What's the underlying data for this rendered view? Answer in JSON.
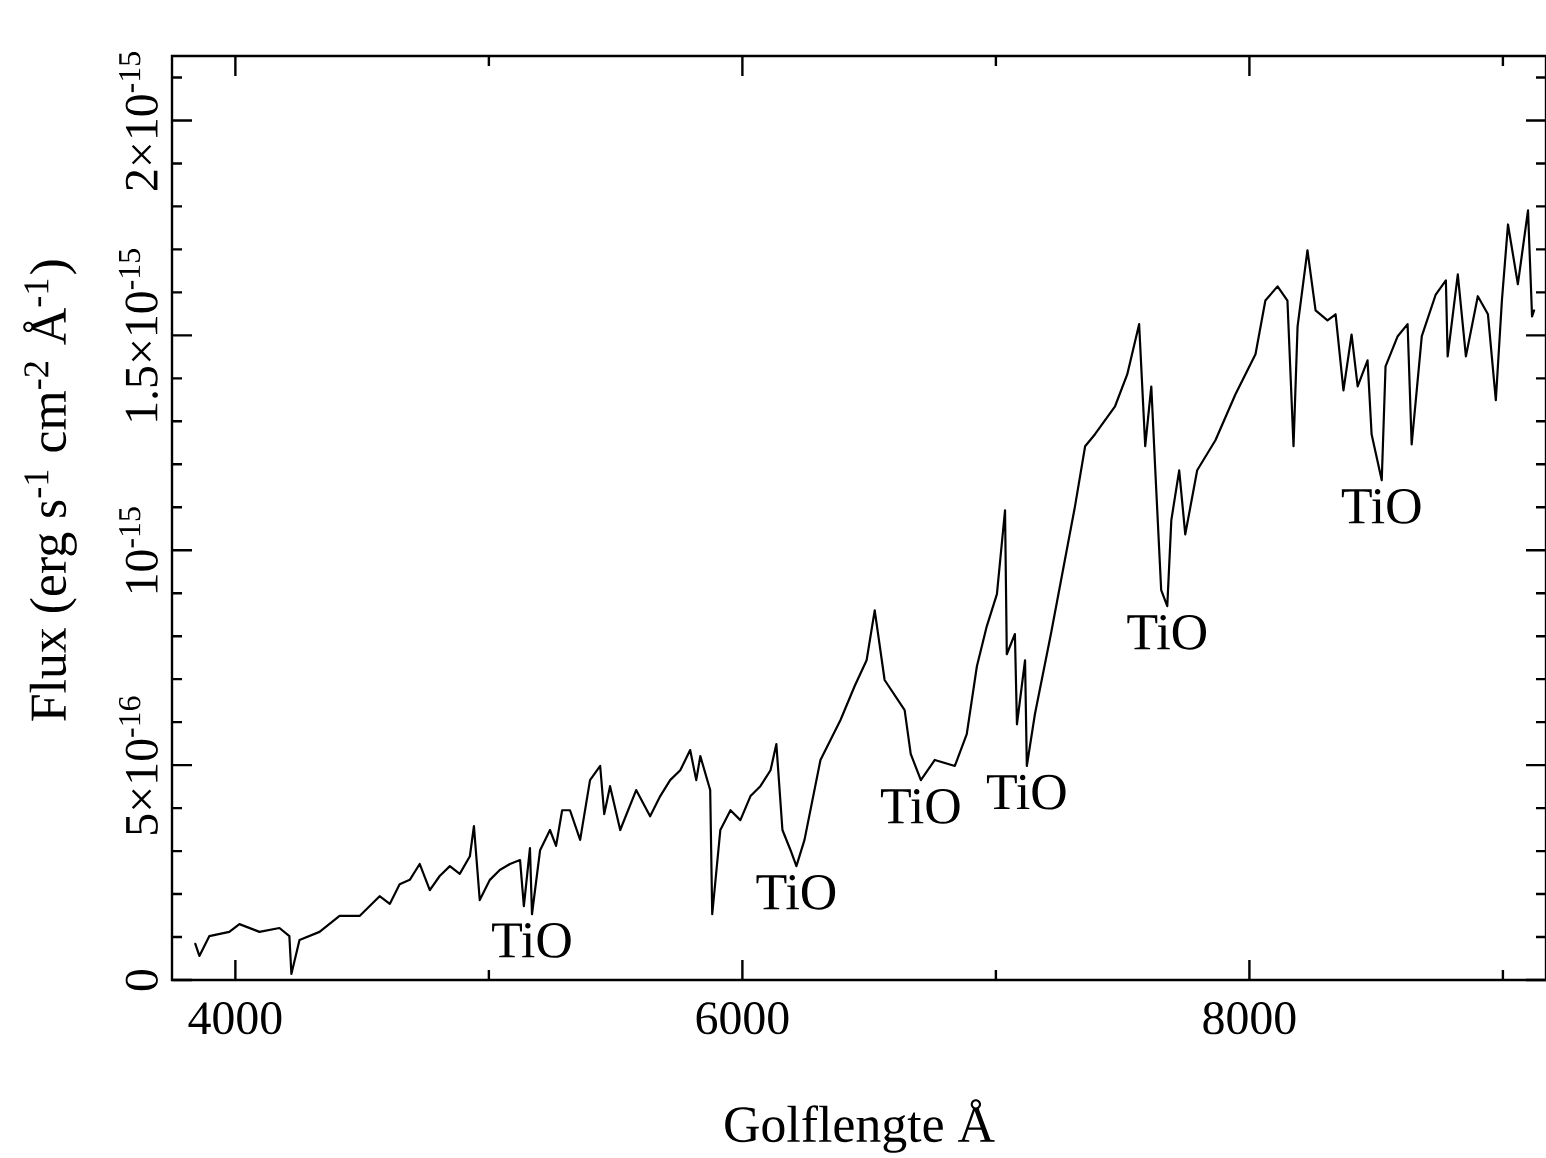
{
  "chart_data": {
    "type": "line",
    "xlabel": "Golflengte Å",
    "ylabel": "Flux (erg s$^{-1}$ cm$^{-2}$ Å$^{-1}$)",
    "xlim": [
      3750,
      9170
    ],
    "ylim": [
      0,
      2.15e-15
    ],
    "xticks": [
      4000,
      {
        "value": 5000,
        "label": null
      },
      6000,
      {
        "value": 7000,
        "label": null
      },
      8000,
      {
        "value": 9000,
        "label": null
      }
    ],
    "yticks": [
      0,
      {
        "value": 1e-16,
        "label": null
      },
      {
        "value": 2e-16,
        "label": null
      },
      {
        "value": 3e-16,
        "label": null
      },
      {
        "value": 4e-16,
        "label": null
      },
      {
        "value": 5e-16,
        "label": "5×10$^{-16}$"
      },
      {
        "value": 6e-16,
        "label": null
      },
      {
        "value": 7e-16,
        "label": null
      },
      {
        "value": 8e-16,
        "label": null
      },
      {
        "value": 9e-16,
        "label": null
      },
      {
        "value": 1e-15,
        "label": "10$^{-15}$"
      },
      {
        "value": 1.1e-15,
        "label": null
      },
      {
        "value": 1.2e-15,
        "label": null
      },
      {
        "value": 1.3e-15,
        "label": null
      },
      {
        "value": 1.4e-15,
        "label": null
      },
      {
        "value": 1.5e-15,
        "label": "1.5×10$^{-15}$"
      },
      {
        "value": 1.6e-15,
        "label": null
      },
      {
        "value": 1.7e-15,
        "label": null
      },
      {
        "value": 1.8e-15,
        "label": null
      },
      {
        "value": 1.9e-15,
        "label": null
      },
      {
        "value": 2e-15,
        "label": "2×10$^{-15}$"
      },
      {
        "value": 2.1e-15,
        "label": null
      }
    ],
    "color": "#000000",
    "x": [
      3842,
      3858,
      3897,
      3976,
      4016,
      4095,
      4174,
      4213,
      4221,
      4253,
      4332,
      4411,
      4490,
      4569,
      4609,
      4648,
      4688,
      4727,
      4767,
      4806,
      4846,
      4885,
      4925,
      4941,
      4964,
      5004,
      5043,
      5083,
      5123,
      5138,
      5162,
      5170,
      5202,
      5241,
      5265,
      5289,
      5320,
      5360,
      5399,
      5439,
      5455,
      5478,
      5518,
      5581,
      5636,
      5676,
      5715,
      5755,
      5794,
      5818,
      5834,
      5873,
      5881,
      5913,
      5953,
      5992,
      6032,
      6071,
      6111,
      6134,
      6158,
      6190,
      6213,
      6245,
      6308,
      6387,
      6443,
      6490,
      6522,
      6561,
      6640,
      6664,
      6704,
      6759,
      6838,
      6885,
      6925,
      6964,
      7004,
      7036,
      7043,
      7075,
      7083,
      7115,
      7122,
      7154,
      7217,
      7257,
      7312,
      7352,
      7391,
      7470,
      7518,
      7565,
      7589,
      7613,
      7628,
      7652,
      7676,
      7692,
      7723,
      7747,
      7794,
      7866,
      7945,
      8024,
      8063,
      8111,
      8150,
      8174,
      8190,
      8229,
      8261,
      8308,
      8340,
      8371,
      8403,
      8427,
      8466,
      8482,
      8522,
      8537,
      8585,
      8624,
      8640,
      8680,
      8735,
      8775,
      8782,
      8822,
      8854,
      8901,
      8941,
      8972,
      8996,
      9020,
      9059,
      9099,
      9115,
      9123
    ],
    "values": [
      8.4e-17,
      5.6e-17,
      1.02e-16,
      1.12e-16,
      1.3e-16,
      1.12e-16,
      1.21e-16,
      1.02e-16,
      1.4e-17,
      9.3e-17,
      1.12e-16,
      1.49e-16,
      1.49e-16,
      1.95e-16,
      1.77e-16,
      2.23e-16,
      2.33e-16,
      2.7e-16,
      2.09e-16,
      2.42e-16,
      2.65e-16,
      2.47e-16,
      2.88e-16,
      3.58e-16,
      1.86e-16,
      2.33e-16,
      2.56e-16,
      2.7e-16,
      2.79e-16,
      1.72e-16,
      3.07e-16,
      1.53e-16,
      3.02e-16,
      3.49e-16,
      3.12e-16,
      3.95e-16,
      3.95e-16,
      3.26e-16,
      4.65e-16,
      4.98e-16,
      3.86e-16,
      4.51e-16,
      3.49e-16,
      4.42e-16,
      3.81e-16,
      4.28e-16,
      4.65e-16,
      4.88e-16,
      5.35e-16,
      4.65e-16,
      5.21e-16,
      4.42e-16,
      1.53e-16,
      3.49e-16,
      3.95e-16,
      3.72e-16,
      4.28e-16,
      4.51e-16,
      4.88e-16,
      5.49e-16,
      3.49e-16,
      3.02e-16,
      2.65e-16,
      3.26e-16,
      5.12e-16,
      6.05e-16,
      6.84e-16,
      7.44e-16,
      8.6e-16,
      6.98e-16,
      6.28e-16,
      5.26e-16,
      4.65e-16,
      5.12e-16,
      4.98e-16,
      5.72e-16,
      7.3e-16,
      8.23e-16,
      8.98e-16,
      1.093e-15,
      7.58e-16,
      8.05e-16,
      5.95e-16,
      7.44e-16,
      4.98e-16,
      6.19e-16,
      8.05e-16,
      9.3e-16,
      1.102e-15,
      1.242e-15,
      1.27e-15,
      1.335e-15,
      1.409e-15,
      1.526e-15,
      1.242e-15,
      1.381e-15,
      1.195e-15,
      9.07e-16,
      8.7e-16,
      1.07e-15,
      1.186e-15,
      1.037e-15,
      1.186e-15,
      1.256e-15,
      1.363e-15,
      1.456e-15,
      1.581e-15,
      1.614e-15,
      1.581e-15,
      1.242e-15,
      1.521e-15,
      1.698e-15,
      1.558e-15,
      1.535e-15,
      1.549e-15,
      1.372e-15,
      1.502e-15,
      1.381e-15,
      1.442e-15,
      1.27e-15,
      1.163e-15,
      1.428e-15,
      1.498e-15,
      1.526e-15,
      1.246e-15,
      1.498e-15,
      1.595e-15,
      1.628e-15,
      1.451e-15,
      1.642e-15,
      1.451e-15,
      1.591e-15,
      1.549e-15,
      1.349e-15,
      1.581e-15,
      1.758e-15,
      1.619e-15,
      1.791e-15,
      1.544e-15,
      1.558e-15
    ],
    "annotations": [
      {
        "text": "TiO",
        "x": 5170,
        "y": 1.53e-16
      },
      {
        "text": "TiO",
        "x": 6213,
        "y": 2.65e-16
      },
      {
        "text": "TiO",
        "x": 6704,
        "y": 4.65e-16
      },
      {
        "text": "TiO",
        "x": 7122,
        "y": 4.98e-16
      },
      {
        "text": "TiO",
        "x": 7676,
        "y": 8.7e-16
      },
      {
        "text": "TiO",
        "x": 8522,
        "y": 1.163e-15
      }
    ]
  }
}
